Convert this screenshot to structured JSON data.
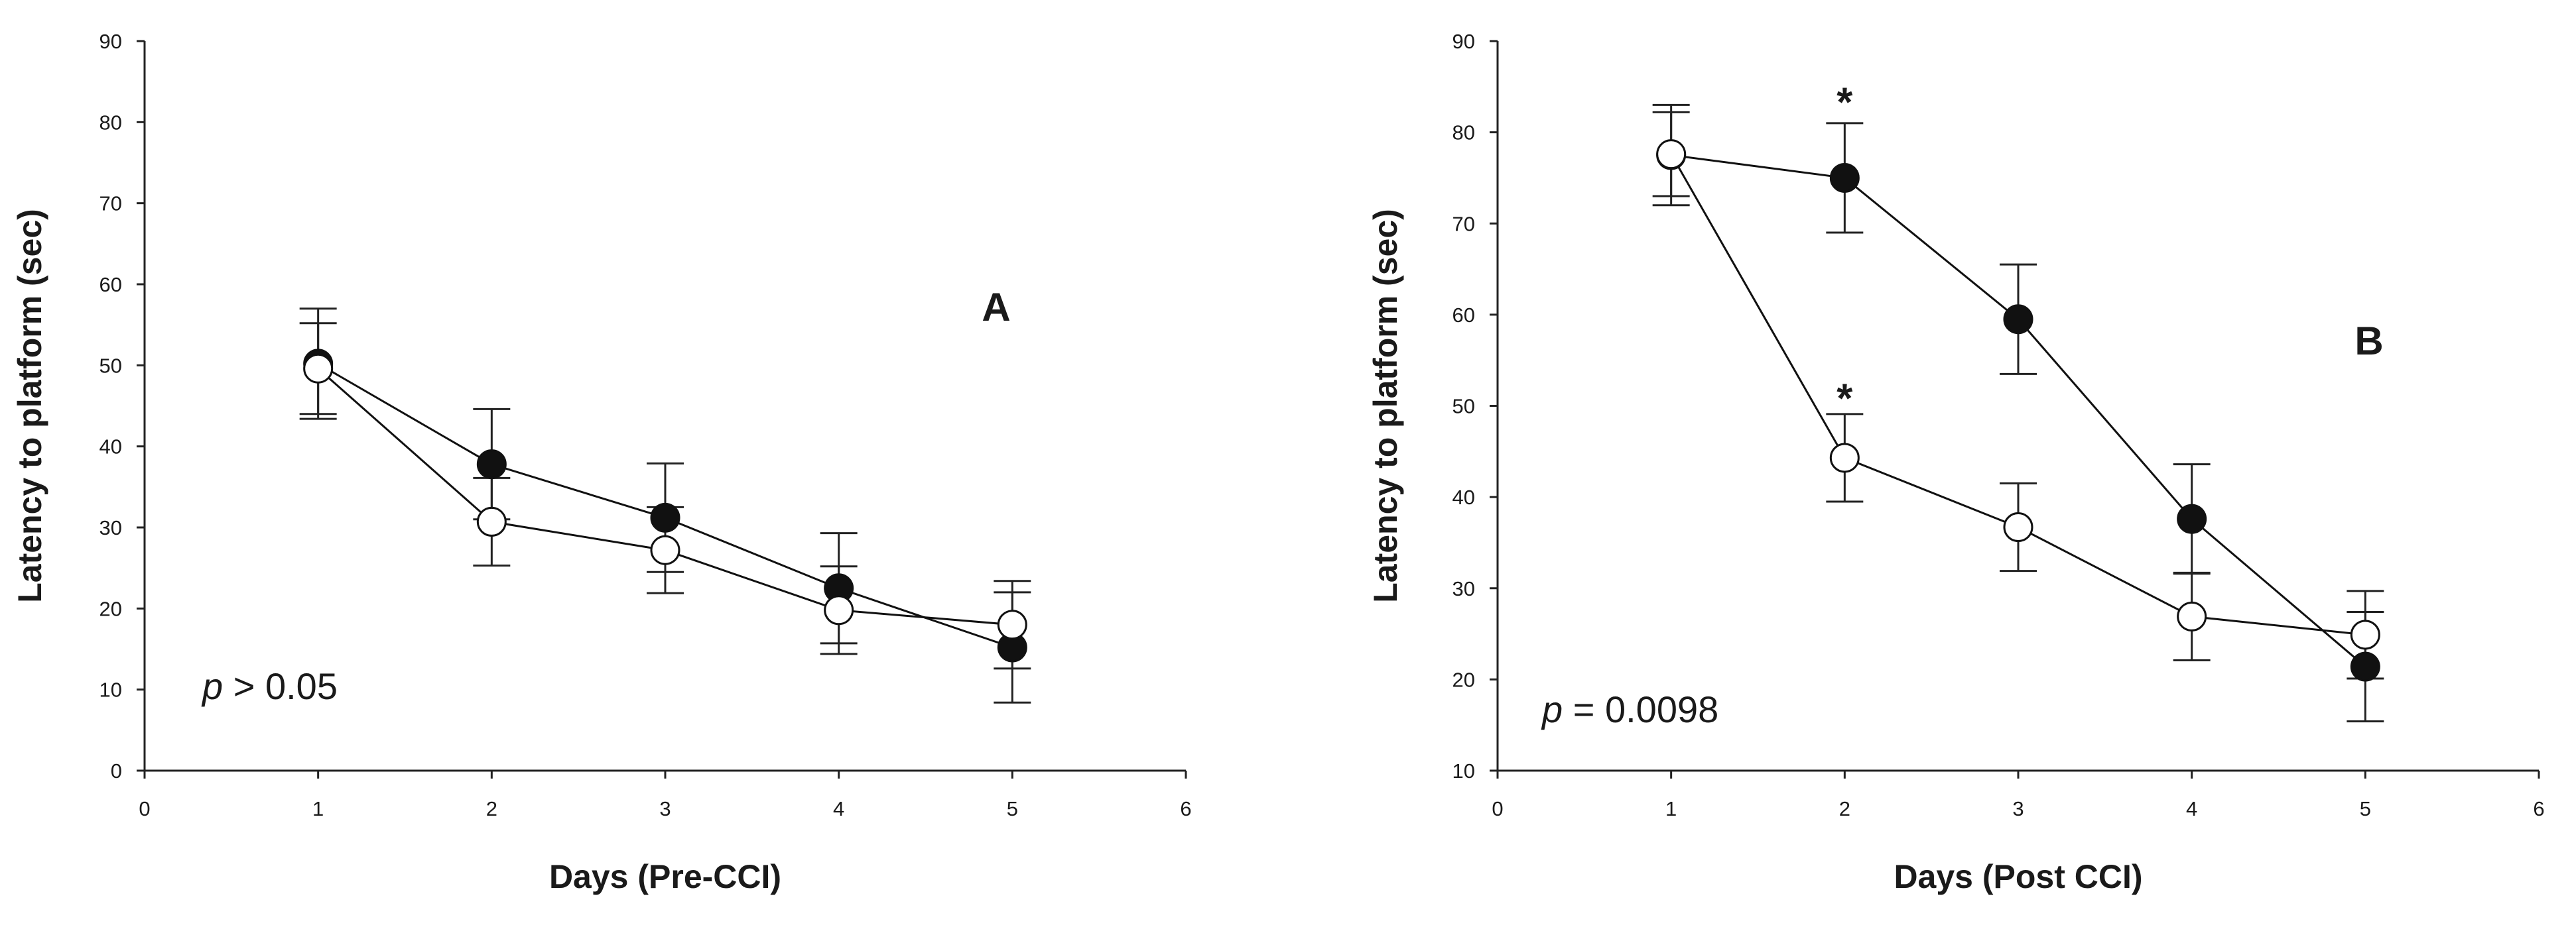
{
  "chart_data": [
    {
      "type": "line",
      "panel_label": "A",
      "xlabel": "Days (Pre-CCI)",
      "ylabel": "Latency to platform (sec)",
      "xlim": [
        0,
        6
      ],
      "ylim": [
        0,
        90
      ],
      "xticks": [
        0,
        1,
        2,
        3,
        4,
        5,
        6
      ],
      "yticks": [
        0,
        10,
        20,
        30,
        40,
        50,
        60,
        70,
        80,
        90
      ],
      "grid": false,
      "annotation": {
        "p_symbol": "p",
        "p_text": " > 0.05"
      },
      "series": [
        {
          "marker": "filled-circle",
          "color": "#111111",
          "x": [
            1,
            2,
            3,
            4,
            5
          ],
          "y": [
            50.2,
            37.8,
            31.2,
            22.5,
            15.2
          ],
          "err": [
            6.8,
            6.8,
            6.7,
            6.8,
            6.8
          ]
        },
        {
          "marker": "open-circle",
          "color": "#111111",
          "x": [
            1,
            2,
            3,
            4,
            5
          ],
          "y": [
            49.6,
            30.7,
            27.2,
            19.8,
            18.0
          ],
          "err": [
            5.6,
            5.4,
            5.3,
            5.4,
            5.4
          ]
        }
      ],
      "significance": []
    },
    {
      "type": "line",
      "panel_label": "B",
      "xlabel": "Days (Post CCI)",
      "ylabel": "Latency to platform (sec)",
      "xlim": [
        0,
        6
      ],
      "ylim": [
        10,
        90
      ],
      "xticks": [
        0,
        1,
        2,
        3,
        4,
        5,
        6
      ],
      "yticks": [
        10,
        20,
        30,
        40,
        50,
        60,
        70,
        80,
        90
      ],
      "grid": false,
      "annotation": {
        "p_symbol": "p",
        "p_text": " = 0.0098"
      },
      "series": [
        {
          "marker": "filled-circle",
          "color": "#111111",
          "x": [
            1,
            2,
            3,
            4,
            5
          ],
          "y": [
            77.5,
            75.0,
            59.5,
            37.6,
            21.4
          ],
          "err": [
            5.5,
            6.0,
            6.0,
            6.0,
            6.0
          ]
        },
        {
          "marker": "open-circle",
          "color": "#111111",
          "x": [
            1,
            2,
            3,
            4,
            5
          ],
          "y": [
            77.6,
            44.3,
            36.7,
            26.9,
            24.9
          ],
          "err": [
            4.6,
            4.8,
            4.8,
            4.8,
            4.8
          ]
        }
      ],
      "significance": [
        {
          "x": 2,
          "y": 83.5,
          "symbol": "*"
        },
        {
          "x": 2,
          "y": 51.0,
          "symbol": "*"
        }
      ]
    }
  ]
}
